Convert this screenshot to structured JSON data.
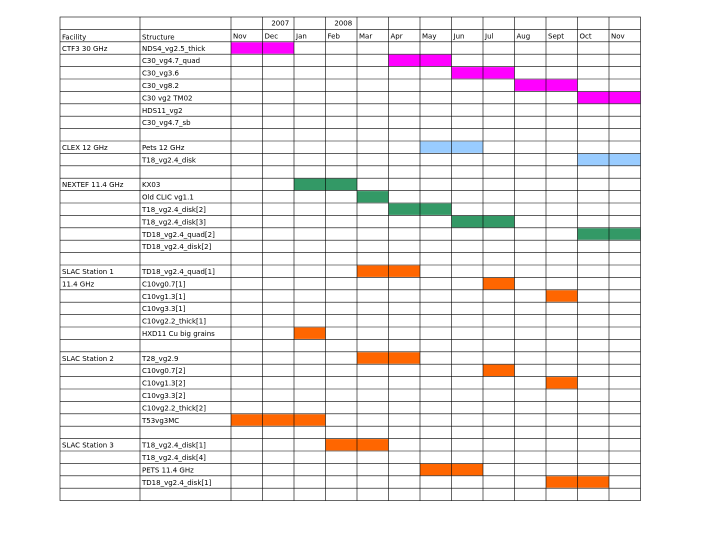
{
  "year_labels": [
    {
      "text": "2007",
      "col": 2
    },
    {
      "text": "2008",
      "col": 4
    }
  ],
  "months": [
    "Nov",
    "Dec",
    "Jan",
    "Feb",
    "Mar",
    "Apr",
    "May",
    "Jun",
    "Jul",
    "Aug",
    "Sept",
    "Oct",
    "Nov"
  ],
  "headers": {
    "facility": "Facility",
    "structure": "Structure"
  },
  "colors": {
    "magenta": "#ff00ff",
    "light-blue": "#99ccff",
    "green": "#339966",
    "orange": "#ff6600"
  },
  "rows": [
    {
      "facility": "CTF3 30 GHz",
      "structure": "NDS4_vg2.5_thick",
      "bars": [
        {
          "start": 0,
          "end": 2,
          "color": "magenta"
        }
      ]
    },
    {
      "facility": "",
      "structure": "C30_vg4.7_quad",
      "bars": [
        {
          "start": 5,
          "end": 7,
          "color": "magenta"
        }
      ]
    },
    {
      "facility": "",
      "structure": "C30_vg3.6",
      "bars": [
        {
          "start": 7,
          "end": 9,
          "color": "magenta"
        }
      ]
    },
    {
      "facility": "",
      "structure": "C30_vg8.2",
      "bars": [
        {
          "start": 9,
          "end": 11,
          "color": "magenta"
        }
      ]
    },
    {
      "facility": "",
      "structure": "C30 vg2 TM02",
      "bars": [
        {
          "start": 11,
          "end": 13,
          "color": "magenta"
        }
      ]
    },
    {
      "facility": "",
      "structure": "HDS11_vg2",
      "bars": []
    },
    {
      "facility": "",
      "structure": "C30_vg4.7_sb",
      "bars": []
    },
    {
      "facility": "",
      "structure": "",
      "bars": []
    },
    {
      "facility": "CLEX 12 GHz",
      "structure": "Pets 12 GHz",
      "bars": [
        {
          "start": 6,
          "end": 8,
          "color": "light-blue"
        }
      ]
    },
    {
      "facility": "",
      "structure": "T18_vg2.4_disk",
      "bars": [
        {
          "start": 11,
          "end": 13,
          "color": "light-blue"
        }
      ]
    },
    {
      "facility": "",
      "structure": "",
      "bars": []
    },
    {
      "facility": "NEXTEF 11.4 GHz",
      "structure": "KX03",
      "bars": [
        {
          "start": 2,
          "end": 4,
          "color": "green"
        }
      ]
    },
    {
      "facility": "",
      "structure": "Old CLIC vg1.1",
      "bars": [
        {
          "start": 4,
          "end": 5,
          "color": "green"
        }
      ]
    },
    {
      "facility": "",
      "structure": "T18_vg2.4_disk[2]",
      "bars": [
        {
          "start": 5,
          "end": 7,
          "color": "green"
        }
      ]
    },
    {
      "facility": "",
      "structure": "T18_vg2.4_disk[3]",
      "bars": [
        {
          "start": 7,
          "end": 9,
          "color": "green"
        }
      ]
    },
    {
      "facility": "",
      "structure": "TD18_vg2.4_quad[2]",
      "bars": [
        {
          "start": 11,
          "end": 13,
          "color": "green"
        }
      ]
    },
    {
      "facility": "",
      "structure": "TD18_vg2.4_disk[2]",
      "bars": []
    },
    {
      "facility": "",
      "structure": "",
      "bars": []
    },
    {
      "facility": "SLAC Station 1",
      "structure": "TD18_vg2.4_quad[1]",
      "bars": [
        {
          "start": 4,
          "end": 6,
          "color": "orange"
        }
      ]
    },
    {
      "facility": "11.4 GHz",
      "structure": "C10vg0.7[1]",
      "bars": [
        {
          "start": 8,
          "end": 9,
          "color": "orange"
        }
      ]
    },
    {
      "facility": "",
      "structure": "C10vg1.3[1]",
      "bars": [
        {
          "start": 10,
          "end": 11,
          "color": "orange"
        }
      ]
    },
    {
      "facility": "",
      "structure": "C10vg3.3[1]",
      "bars": []
    },
    {
      "facility": "",
      "structure": "C10vg2.2_thick[1]",
      "bars": []
    },
    {
      "facility": "",
      "structure": "HXD11 Cu big grains",
      "bars": [
        {
          "start": 2,
          "end": 3,
          "color": "orange"
        }
      ]
    },
    {
      "facility": "",
      "structure": "",
      "bars": []
    },
    {
      "facility": "SLAC Station 2",
      "structure": "T28_vg2.9",
      "bars": [
        {
          "start": 4,
          "end": 6,
          "color": "orange"
        }
      ]
    },
    {
      "facility": "",
      "structure": "C10vg0.7[2]",
      "bars": [
        {
          "start": 8,
          "end": 9,
          "color": "orange"
        }
      ]
    },
    {
      "facility": "",
      "structure": "C10vg1.3[2]",
      "bars": [
        {
          "start": 10,
          "end": 11,
          "color": "orange"
        }
      ]
    },
    {
      "facility": "",
      "structure": "C10vg3.3[2]",
      "bars": []
    },
    {
      "facility": "",
      "structure": "C10vg2.2_thick[2]",
      "bars": []
    },
    {
      "facility": "",
      "structure": "T53vg3MC",
      "bars": [
        {
          "start": 0,
          "end": 3,
          "color": "orange"
        }
      ]
    },
    {
      "facility": "",
      "structure": "",
      "bars": []
    },
    {
      "facility": "SLAC Station 3",
      "structure": "T18_vg2.4_disk[1]",
      "bars": [
        {
          "start": 3,
          "end": 5,
          "color": "orange"
        }
      ]
    },
    {
      "facility": "",
      "structure": "T18_vg2.4_disk[4]",
      "bars": []
    },
    {
      "facility": "",
      "structure": "PETS 11.4 GHz",
      "bars": [
        {
          "start": 6,
          "end": 8,
          "color": "orange"
        }
      ]
    },
    {
      "facility": "",
      "structure": "TD18_vg2.4_disk[1]",
      "bars": [
        {
          "start": 10,
          "end": 12,
          "color": "orange"
        }
      ]
    },
    {
      "facility": "",
      "structure": "",
      "bars": []
    }
  ]
}
